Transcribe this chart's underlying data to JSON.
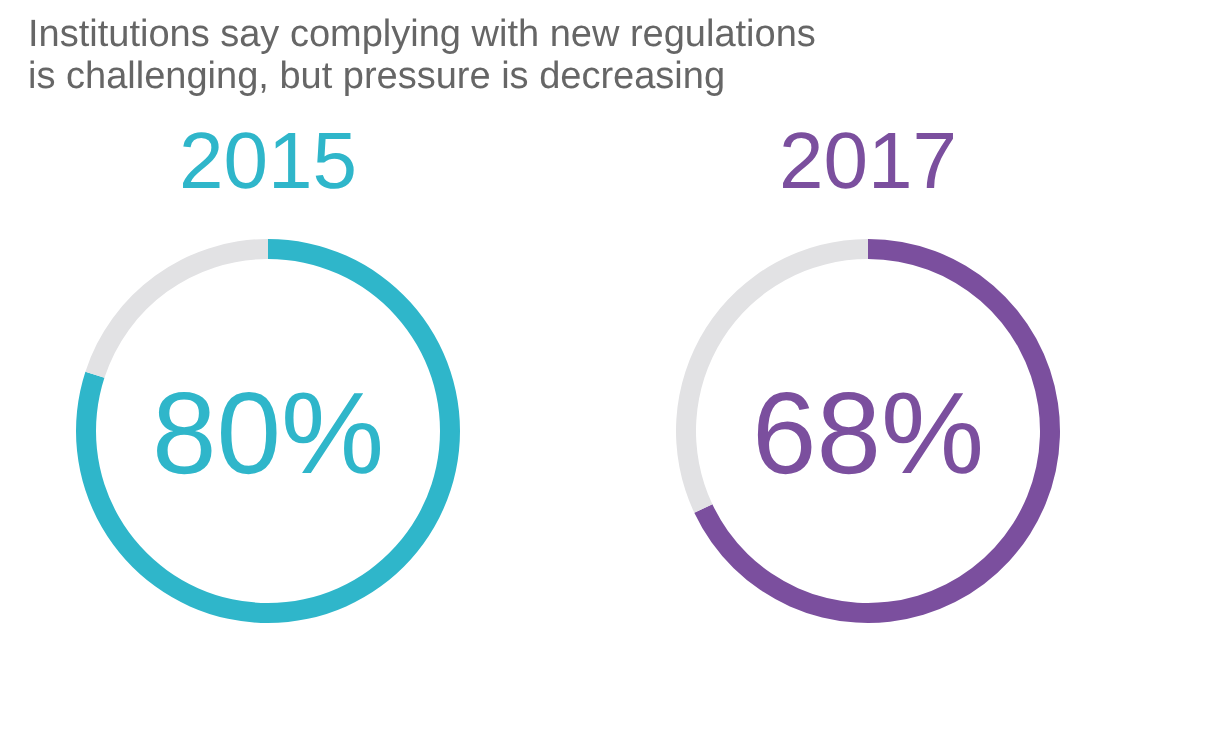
{
  "chart_data": [
    {
      "type": "donut",
      "title": "2015",
      "annotations": [
        "Institutions say complying with new regulations is challenging, but pressure is decreasing"
      ],
      "categories": [
        null,
        null
      ],
      "values": [
        80,
        20
      ],
      "colors": [
        "#2fb6ca",
        "#e2e2e4"
      ],
      "value_labels": [
        "80%",
        null
      ],
      "legend": false
    },
    {
      "type": "donut",
      "title": "2017",
      "categories": [
        null,
        null
      ],
      "values": [
        68,
        32
      ],
      "colors": [
        "#7b4f9e",
        "#e2e2e4"
      ],
      "value_labels": [
        "68%",
        null
      ],
      "legend": false
    }
  ]
}
